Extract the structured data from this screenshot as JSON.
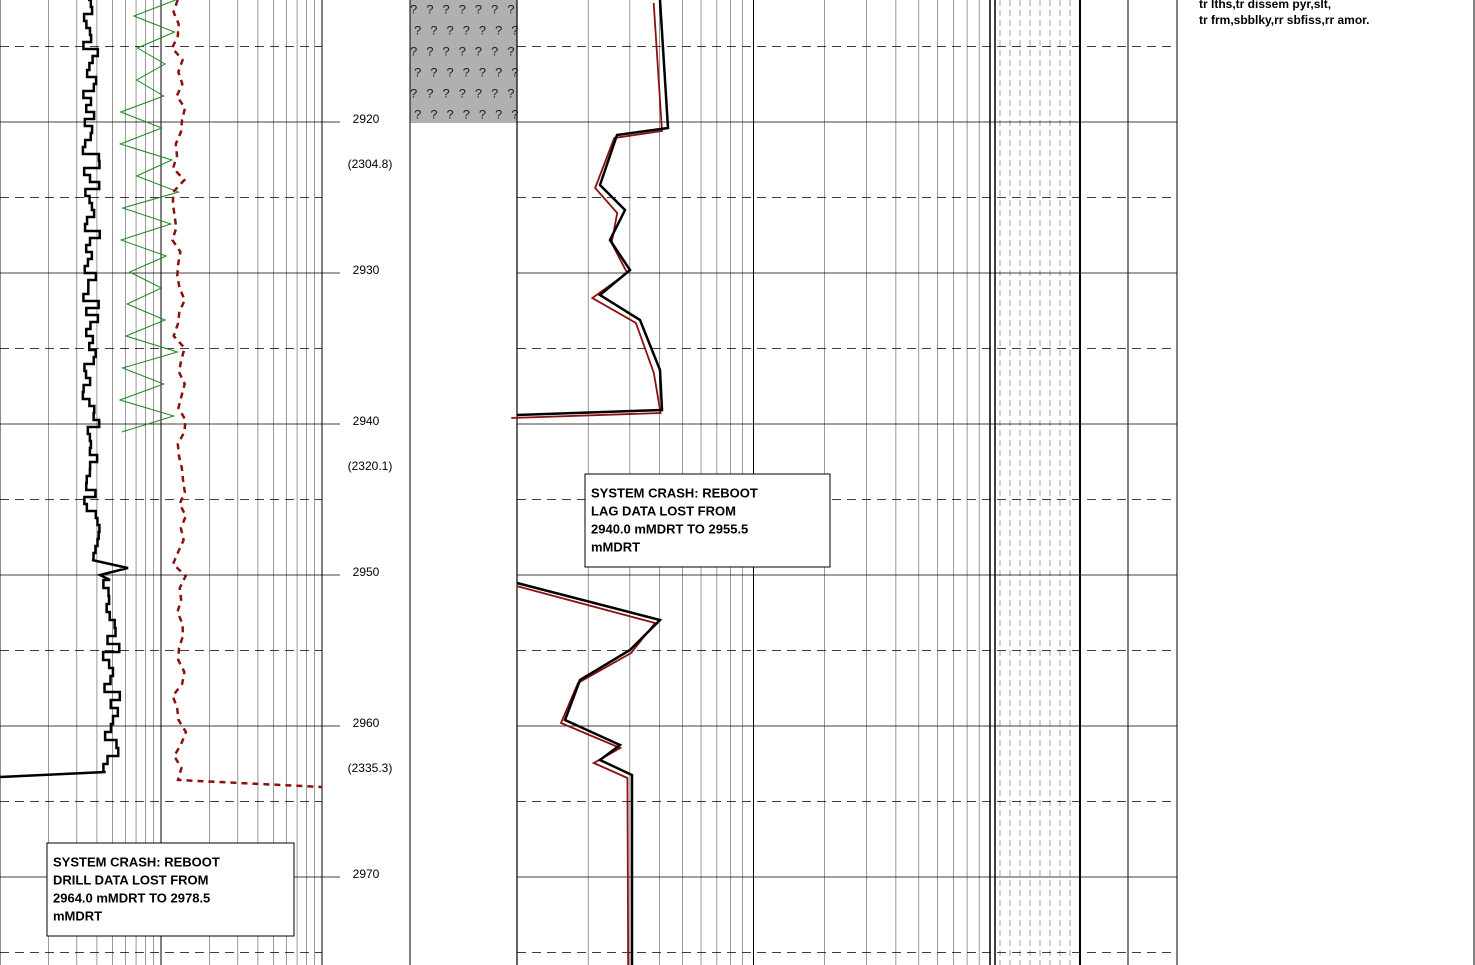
{
  "depth_track": {
    "depths": [
      2920,
      2930,
      2940,
      2950,
      2960,
      2970
    ],
    "tvd_labels": [
      "(2304.8)",
      "(2320.1)",
      "(2335.3)"
    ]
  },
  "lithology": {
    "pattern_row": "???????"
  },
  "drill_note": {
    "lines": [
      "SYSTEM CRASH: REBOOT",
      "DRILL DATA LOST FROM",
      "2964.0 mMDRT TO 2978.5",
      "mMDRT"
    ]
  },
  "lag_note": {
    "lines": [
      "SYSTEM CRASH: REBOOT",
      "LAG DATA LOST FROM",
      "2940.0 mMDRT TO 2955.5",
      "mMDRT"
    ]
  },
  "description": {
    "lines": [
      "tr lths,tr dissem pyr,slt,",
      "tr frm,sbblky,rr sbfiss,rr amor."
    ]
  }
}
